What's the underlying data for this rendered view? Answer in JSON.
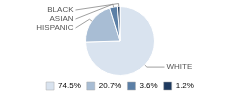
{
  "chart_data": {
    "type": "pie",
    "categories": [
      "WHITE",
      "HISPANIC",
      "ASIAN",
      "BLACK"
    ],
    "values": [
      74.5,
      20.7,
      3.6,
      1.2
    ],
    "value_labels": [
      "74.5%",
      "20.7%",
      "3.6%",
      "1.2%"
    ],
    "colors": [
      "#d9e3ef",
      "#a8bdd4",
      "#5b7fa6",
      "#1e3a5f"
    ],
    "legend": "bottom"
  }
}
